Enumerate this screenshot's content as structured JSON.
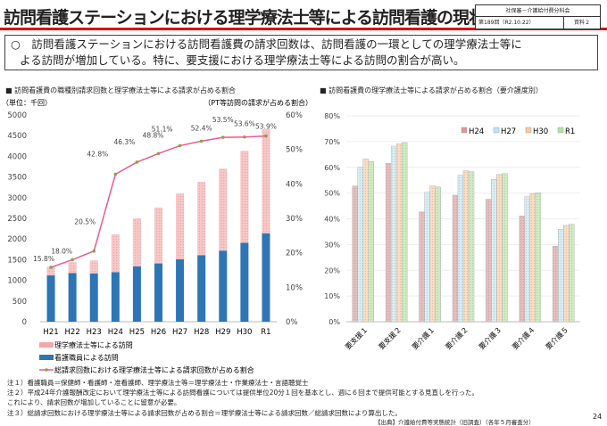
{
  "header": {
    "title": "訪問看護ステーションにおける理学療法士等による訪問看護の現状",
    "meta_committee": "社保審－介護給付費分科会",
    "meta_session": "第189回（R2.10.22）",
    "meta_doc": "資料２"
  },
  "summary": {
    "line1": "○　訪問看護ステーションにおける訪問看護費の請求回数は、訪問看護の一環としての理学療法士等に",
    "line2": "よる訪問が増加している。特に、要支援における理学療法士等による訪問の割合が高い。"
  },
  "colors": {
    "pt": "#f4a7a7",
    "nurse": "#2e75b6",
    "line": "#ee5a8a",
    "h24": "#d99a9a",
    "h27": "#bfe3ee",
    "h30": "#fbc9a0",
    "r1": "#b6e0a0"
  },
  "chart_data": [
    {
      "type": "bar",
      "stacked": true,
      "section_title": "■ 訪問看護費の職種別請求回数と理学療法士等による請求が占める割合",
      "ylabel": "（単位：千回）",
      "y2label": "（PT等訪問の請求が占める割合）",
      "categories": [
        "H21",
        "H22",
        "H23",
        "H24",
        "H25",
        "H26",
        "H27",
        "H28",
        "H29",
        "H30",
        "R1"
      ],
      "ylim": [
        0,
        5000
      ],
      "yticks": [
        "0",
        "500",
        "1000",
        "1500",
        "2000",
        "2500",
        "3000",
        "3500",
        "4000",
        "4500",
        "5000"
      ],
      "y2lim": [
        0,
        60
      ],
      "y2ticks": [
        "0%",
        "10%",
        "20%",
        "30%",
        "40%",
        "50%",
        "60%"
      ],
      "series": [
        {
          "name": "看護職員による訪問",
          "values": [
            1120,
            1180,
            1170,
            1200,
            1340,
            1410,
            1510,
            1610,
            1720,
            1910,
            2140
          ]
        },
        {
          "name": "理学療法士等による訪問",
          "values": [
            210,
            260,
            310,
            910,
            1160,
            1350,
            1590,
            1770,
            1980,
            2220,
            2510
          ]
        },
        {
          "name": "総請求回数における理学療法士等による請求回数が占める割合",
          "type": "line",
          "axis": "right",
          "values": [
            15.8,
            18.0,
            20.5,
            42.8,
            46.3,
            48.8,
            51.1,
            52.4,
            53.5,
            53.6,
            53.9
          ],
          "labels": [
            "15.8%",
            "18.0%",
            "20.5%",
            "42.8%",
            "46.3%",
            "48.8%",
            "51.1%",
            "52.4%",
            "53.5%",
            "53.6%",
            "53.9%"
          ]
        }
      ],
      "legend_placement": "bottom"
    },
    {
      "type": "bar",
      "section_title": "■ 訪問看護費の理学療法士等による請求が占める割合（要介護度別）",
      "categories": [
        "要支援１",
        "要支援２",
        "要介護１",
        "要介護２",
        "要介護３",
        "要介護４",
        "要介護５"
      ],
      "ylim": [
        0,
        80
      ],
      "yticks": [
        "0%",
        "10%",
        "20%",
        "30%",
        "40%",
        "50%",
        "60%",
        "70%",
        "80%"
      ],
      "grid": true,
      "series": [
        {
          "name": "H24",
          "values": [
            52.7,
            61.5,
            42.7,
            49.2,
            47.6,
            41.1,
            29.3
          ]
        },
        {
          "name": "H27",
          "values": [
            60.0,
            68.2,
            50.3,
            56.9,
            55.3,
            48.6,
            35.9
          ]
        },
        {
          "name": "H30",
          "values": [
            63.2,
            69.2,
            52.7,
            58.6,
            57.2,
            49.8,
            37.4
          ]
        },
        {
          "name": "R1",
          "values": [
            62.2,
            69.6,
            52.4,
            58.3,
            57.6,
            50.1,
            37.9
          ]
        }
      ],
      "legend_placement": "top-right"
    }
  ],
  "notes": [
    "注１）看護職員＝保健師・看護師・准看護師、理学療法士等＝理学療法士・作業療法士・言語聴覚士",
    "注２）平成24年介護報酬改定において理学療法士等による訪問看護については提供単位20分１回を基本とし、週に６回まで提供可能とする見直しを行った。",
    "これにより、請求回数が増加していることに留意が必要。",
    "注３）総請求回数における理学療法士等による請求回数が占める割合＝理学療法士等による請求回数／総請求回数により算出した。"
  ],
  "source": "【出典】介護給付費等実態統計（旧調査）（各年５月審査分）",
  "page_number": "24"
}
